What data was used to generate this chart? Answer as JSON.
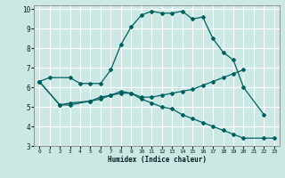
{
  "xlabel": "Humidex (Indice chaleur)",
  "background_color": "#cce8e4",
  "grid_color": "#ffffff",
  "line_color": "#006060",
  "xlim": [
    -0.5,
    23.5
  ],
  "ylim": [
    3,
    10.2
  ],
  "xticks": [
    0,
    1,
    2,
    3,
    4,
    5,
    6,
    7,
    8,
    9,
    10,
    11,
    12,
    13,
    14,
    15,
    16,
    17,
    18,
    19,
    20,
    21,
    22,
    23
  ],
  "yticks": [
    3,
    4,
    5,
    6,
    7,
    8,
    9,
    10
  ],
  "series": [
    {
      "x": [
        0,
        1,
        3,
        4,
        5,
        6,
        7,
        8,
        9,
        10,
        11,
        12,
        13,
        14,
        15,
        16,
        17,
        18,
        19,
        20,
        22
      ],
      "y": [
        6.3,
        6.5,
        6.5,
        6.2,
        6.2,
        6.2,
        6.9,
        8.2,
        9.1,
        9.7,
        9.9,
        9.8,
        9.8,
        9.9,
        9.5,
        9.6,
        8.5,
        7.8,
        7.4,
        6.0,
        4.6
      ]
    },
    {
      "x": [
        0,
        2,
        3,
        5,
        6,
        7,
        8,
        9,
        10,
        11,
        12,
        13,
        14,
        15,
        16,
        17,
        18,
        19,
        20
      ],
      "y": [
        6.3,
        5.1,
        5.2,
        5.3,
        5.4,
        5.6,
        5.8,
        5.7,
        5.5,
        5.5,
        5.6,
        5.7,
        5.8,
        5.9,
        6.1,
        6.3,
        6.5,
        6.7,
        6.9
      ]
    },
    {
      "x": [
        0,
        2,
        3,
        5,
        6,
        7,
        8,
        9,
        10,
        11,
        12,
        13,
        14,
        15,
        16,
        17,
        18,
        19,
        20,
        22,
        23
      ],
      "y": [
        6.3,
        5.1,
        5.1,
        5.3,
        5.5,
        5.6,
        5.7,
        5.7,
        5.4,
        5.2,
        5.0,
        4.9,
        4.6,
        4.4,
        4.2,
        4.0,
        3.8,
        3.6,
        3.4,
        3.4,
        3.4
      ]
    }
  ]
}
